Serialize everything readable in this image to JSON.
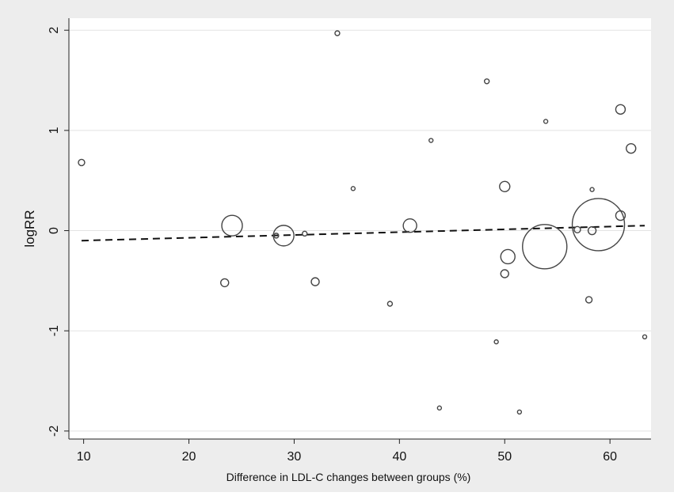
{
  "chart_data": {
    "type": "scatter",
    "title": "",
    "xlabel": "Difference in LDL-C changes between groups  (%)",
    "ylabel": "logRR",
    "xlim": [
      8.6,
      63.9
    ],
    "ylim": [
      -2.08,
      2.12
    ],
    "xticks": [
      10,
      20,
      30,
      40,
      50,
      60
    ],
    "yticks": [
      -2,
      -1,
      0,
      1,
      2
    ],
    "grid": true,
    "legend": "none",
    "marker": "hollow circle, size proportional to study weight",
    "points": [
      {
        "x": 9.8,
        "y": 0.68,
        "size": 4
      },
      {
        "x": 23.4,
        "y": -0.52,
        "size": 5
      },
      {
        "x": 24.1,
        "y": 0.05,
        "size": 13
      },
      {
        "x": 28.3,
        "y": -0.05,
        "size": 3
      },
      {
        "x": 29.0,
        "y": -0.05,
        "size": 13
      },
      {
        "x": 31.0,
        "y": -0.03,
        "size": 3
      },
      {
        "x": 32.0,
        "y": -0.51,
        "size": 5
      },
      {
        "x": 34.1,
        "y": 1.97,
        "size": 3
      },
      {
        "x": 35.6,
        "y": 0.42,
        "size": 2.5
      },
      {
        "x": 39.1,
        "y": -0.73,
        "size": 3
      },
      {
        "x": 41.0,
        "y": 0.05,
        "size": 8.5
      },
      {
        "x": 43.0,
        "y": 0.9,
        "size": 2.5
      },
      {
        "x": 43.8,
        "y": -1.77,
        "size": 2.5
      },
      {
        "x": 48.3,
        "y": 1.49,
        "size": 3
      },
      {
        "x": 49.2,
        "y": -1.11,
        "size": 2.5
      },
      {
        "x": 50.0,
        "y": 0.44,
        "size": 6.5
      },
      {
        "x": 50.0,
        "y": -0.43,
        "size": 5
      },
      {
        "x": 50.3,
        "y": -0.26,
        "size": 9
      },
      {
        "x": 51.4,
        "y": -1.81,
        "size": 2.5
      },
      {
        "x": 53.8,
        "y": -0.16,
        "size": 28
      },
      {
        "x": 53.9,
        "y": 1.09,
        "size": 2.5
      },
      {
        "x": 56.9,
        "y": 0.01,
        "size": 4
      },
      {
        "x": 58.0,
        "y": -0.69,
        "size": 4
      },
      {
        "x": 58.3,
        "y": 0.41,
        "size": 2.5
      },
      {
        "x": 58.3,
        "y": 0.0,
        "size": 5
      },
      {
        "x": 58.9,
        "y": 0.06,
        "size": 33
      },
      {
        "x": 61.0,
        "y": 1.21,
        "size": 6
      },
      {
        "x": 61.0,
        "y": 0.15,
        "size": 6
      },
      {
        "x": 62.0,
        "y": 0.82,
        "size": 6
      },
      {
        "x": 63.3,
        "y": -1.06,
        "size": 2.5
      }
    ],
    "fit_line": {
      "style": "dashed",
      "x": [
        9.8,
        63.3
      ],
      "y": [
        -0.1,
        0.05
      ]
    }
  }
}
